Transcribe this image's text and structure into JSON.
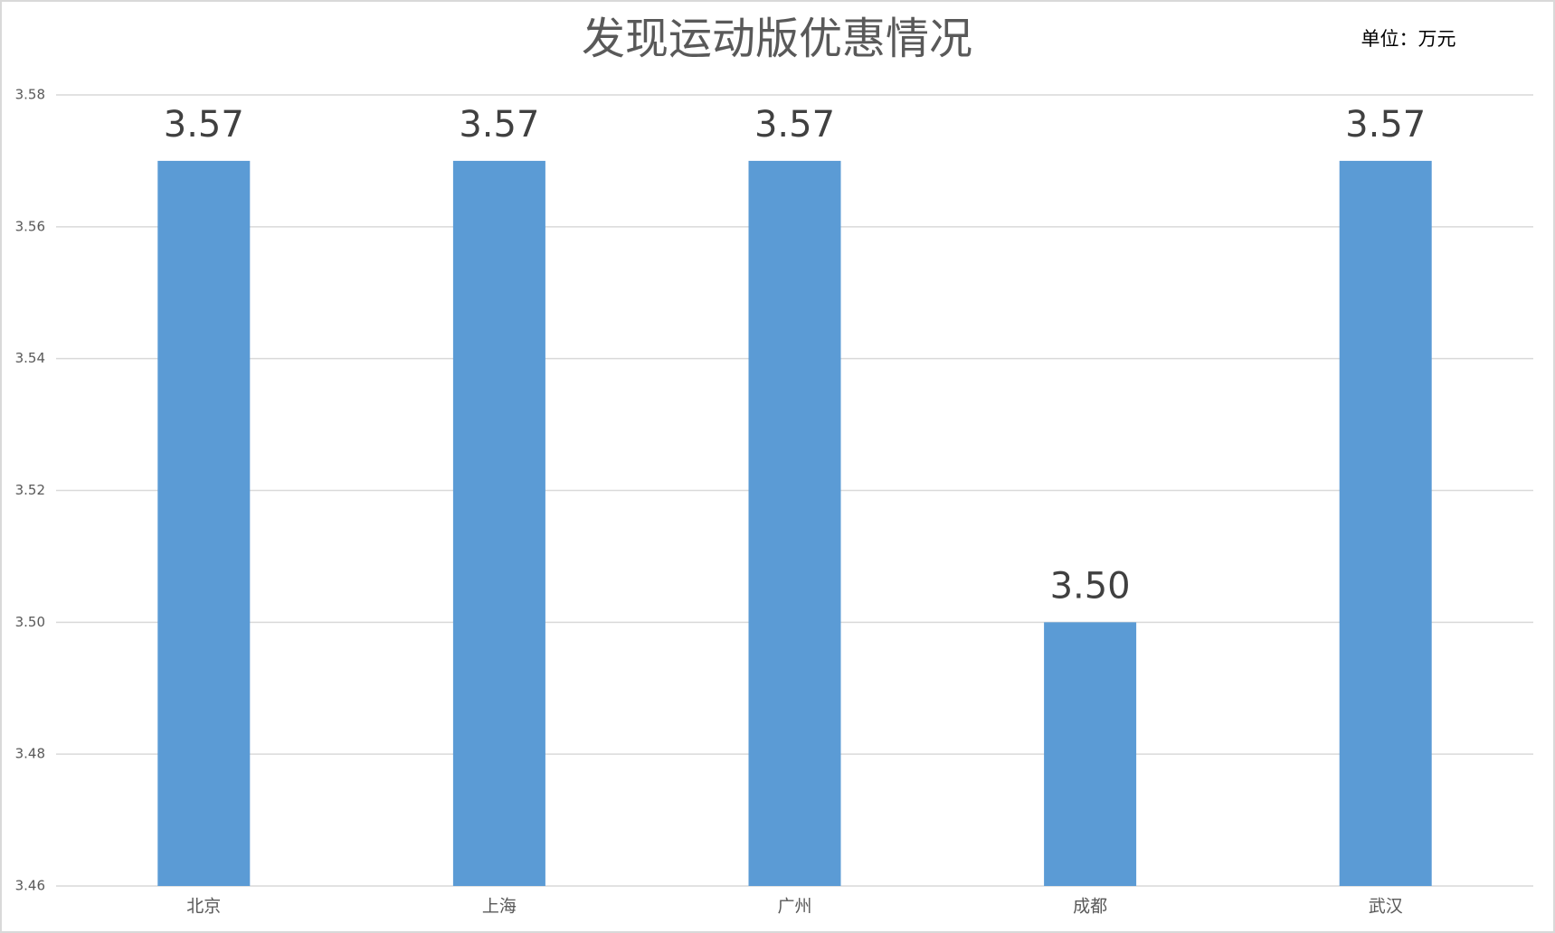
{
  "chart_data": {
    "type": "bar",
    "title": "发现运动版优惠情况",
    "annotation": "单位：万元",
    "categories": [
      "北京",
      "上海",
      "广州",
      "成都",
      "武汉"
    ],
    "values": [
      3.57,
      3.57,
      3.57,
      3.5,
      3.57
    ],
    "value_labels": [
      "3.57",
      "3.57",
      "3.57",
      "3.50",
      "3.57"
    ],
    "color": "#5b9bd5",
    "ylim": [
      3.46,
      3.58
    ],
    "yticks": [
      3.46,
      3.48,
      {
        "value": 3.5,
        "label": "3.50"
      },
      3.52,
      3.54,
      3.56,
      3.58
    ],
    "grid": true
  }
}
